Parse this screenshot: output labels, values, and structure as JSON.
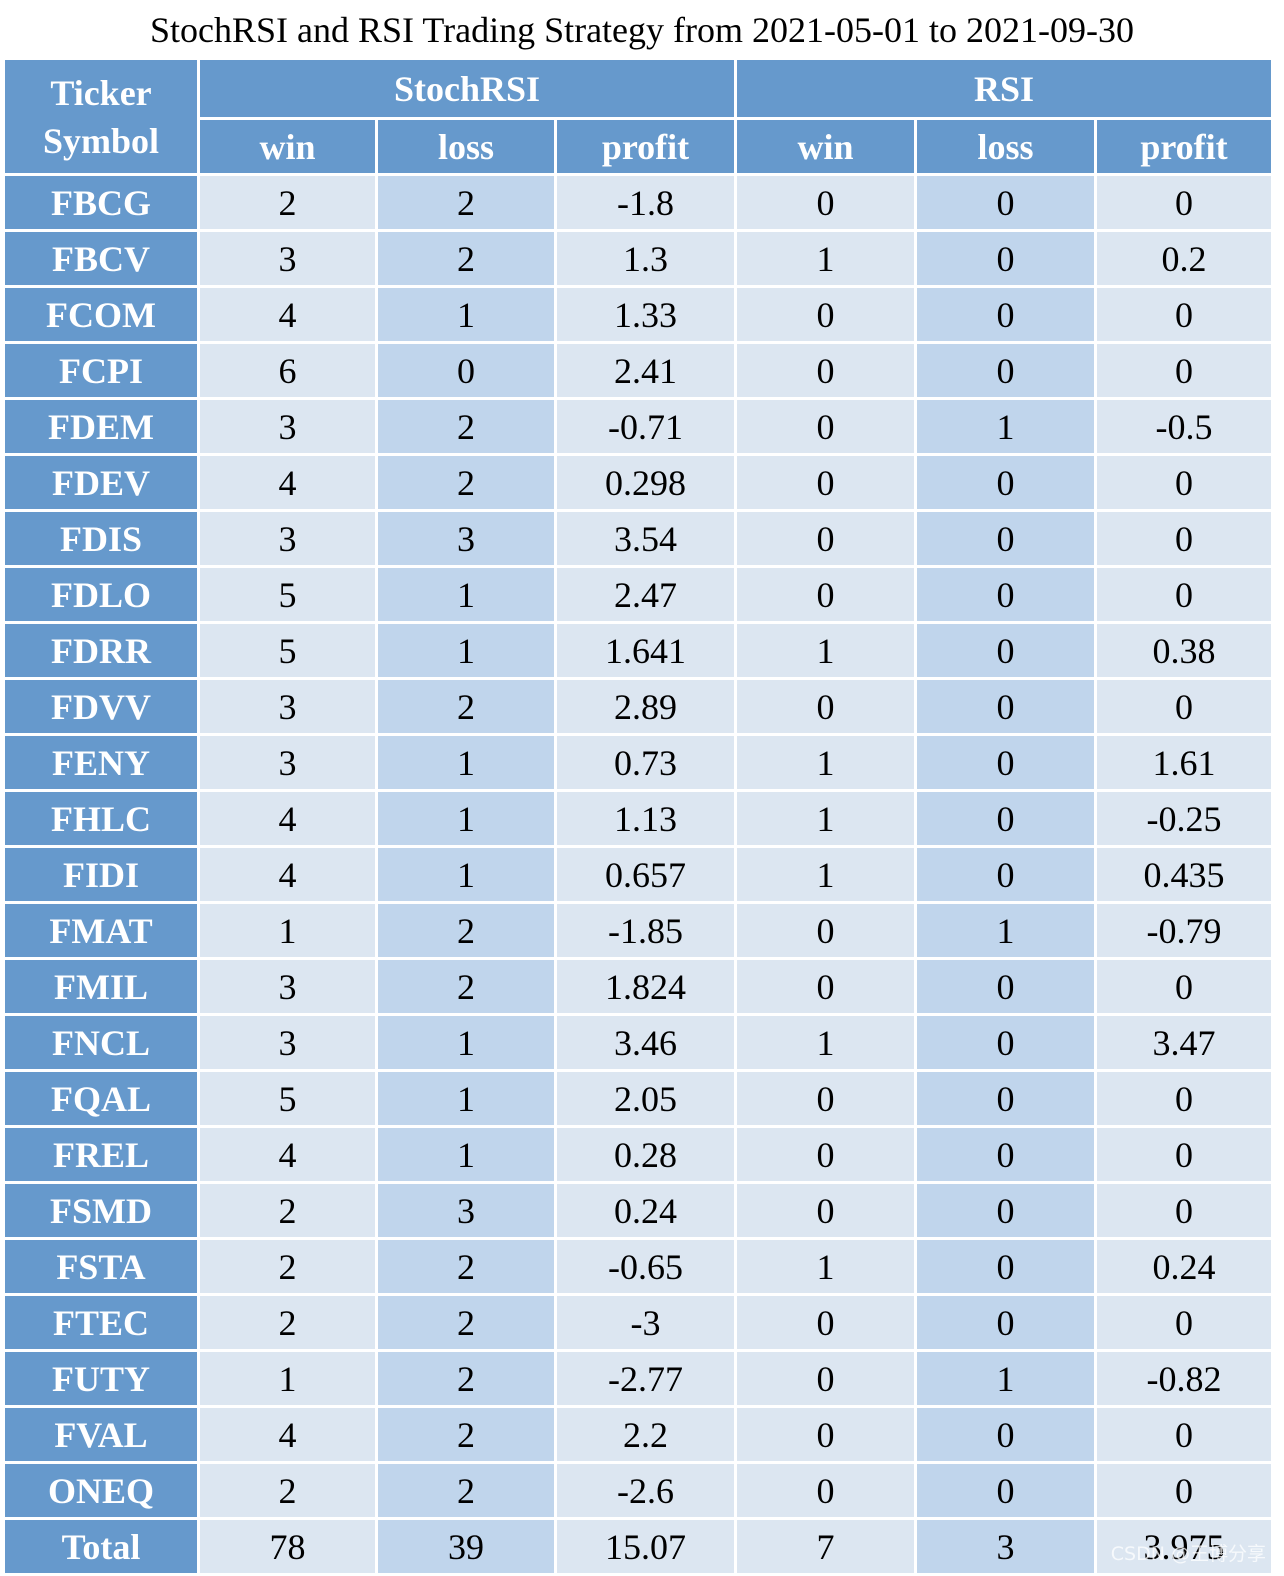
{
  "title": "StochRSI and RSI Trading Strategy from 2021-05-01 to 2021-09-30",
  "header": {
    "ticker_line1": "Ticker",
    "ticker_line2": "Symbol",
    "group_stoch": "StochRSI",
    "group_rsi": "RSI",
    "columns": [
      "win",
      "loss",
      "profit",
      "win",
      "loss",
      "profit"
    ]
  },
  "rows": [
    {
      "ticker": "FBCG",
      "values": [
        "2",
        "2",
        "-1.8",
        "0",
        "0",
        "0"
      ]
    },
    {
      "ticker": "FBCV",
      "values": [
        "3",
        "2",
        "1.3",
        "1",
        "0",
        "0.2"
      ]
    },
    {
      "ticker": "FCOM",
      "values": [
        "4",
        "1",
        "1.33",
        "0",
        "0",
        "0"
      ]
    },
    {
      "ticker": "FCPI",
      "values": [
        "6",
        "0",
        "2.41",
        "0",
        "0",
        "0"
      ]
    },
    {
      "ticker": "FDEM",
      "values": [
        "3",
        "2",
        "-0.71",
        "0",
        "1",
        "-0.5"
      ]
    },
    {
      "ticker": "FDEV",
      "values": [
        "4",
        "2",
        "0.298",
        "0",
        "0",
        "0"
      ]
    },
    {
      "ticker": "FDIS",
      "values": [
        "3",
        "3",
        "3.54",
        "0",
        "0",
        "0"
      ]
    },
    {
      "ticker": "FDLO",
      "values": [
        "5",
        "1",
        "2.47",
        "0",
        "0",
        "0"
      ]
    },
    {
      "ticker": "FDRR",
      "values": [
        "5",
        "1",
        "1.641",
        "1",
        "0",
        "0.38"
      ]
    },
    {
      "ticker": "FDVV",
      "values": [
        "3",
        "2",
        "2.89",
        "0",
        "0",
        "0"
      ]
    },
    {
      "ticker": "FENY",
      "values": [
        "3",
        "1",
        "0.73",
        "1",
        "0",
        "1.61"
      ]
    },
    {
      "ticker": "FHLC",
      "values": [
        "4",
        "1",
        "1.13",
        "1",
        "0",
        "-0.25"
      ]
    },
    {
      "ticker": "FIDI",
      "values": [
        "4",
        "1",
        "0.657",
        "1",
        "0",
        "0.435"
      ]
    },
    {
      "ticker": "FMAT",
      "values": [
        "1",
        "2",
        "-1.85",
        "0",
        "1",
        "-0.79"
      ]
    },
    {
      "ticker": "FMIL",
      "values": [
        "3",
        "2",
        "1.824",
        "0",
        "0",
        "0"
      ]
    },
    {
      "ticker": "FNCL",
      "values": [
        "3",
        "1",
        "3.46",
        "1",
        "0",
        "3.47"
      ]
    },
    {
      "ticker": "FQAL",
      "values": [
        "5",
        "1",
        "2.05",
        "0",
        "0",
        "0"
      ]
    },
    {
      "ticker": "FREL",
      "values": [
        "4",
        "1",
        "0.28",
        "0",
        "0",
        "0"
      ]
    },
    {
      "ticker": "FSMD",
      "values": [
        "2",
        "3",
        "0.24",
        "0",
        "0",
        "0"
      ]
    },
    {
      "ticker": "FSTA",
      "values": [
        "2",
        "2",
        "-0.65",
        "1",
        "0",
        "0.24"
      ]
    },
    {
      "ticker": "FTEC",
      "values": [
        "2",
        "2",
        "-3",
        "0",
        "0",
        "0"
      ]
    },
    {
      "ticker": "FUTY",
      "values": [
        "1",
        "2",
        "-2.77",
        "0",
        "1",
        "-0.82"
      ]
    },
    {
      "ticker": "FVAL",
      "values": [
        "4",
        "2",
        "2.2",
        "0",
        "0",
        "0"
      ]
    },
    {
      "ticker": "ONEQ",
      "values": [
        "2",
        "2",
        "-2.6",
        "0",
        "0",
        "0"
      ]
    },
    {
      "ticker": "Total",
      "values": [
        "78",
        "39",
        "15.07",
        "7",
        "3",
        "3.975"
      ]
    }
  ],
  "watermark": "CSDN @王博分享"
}
